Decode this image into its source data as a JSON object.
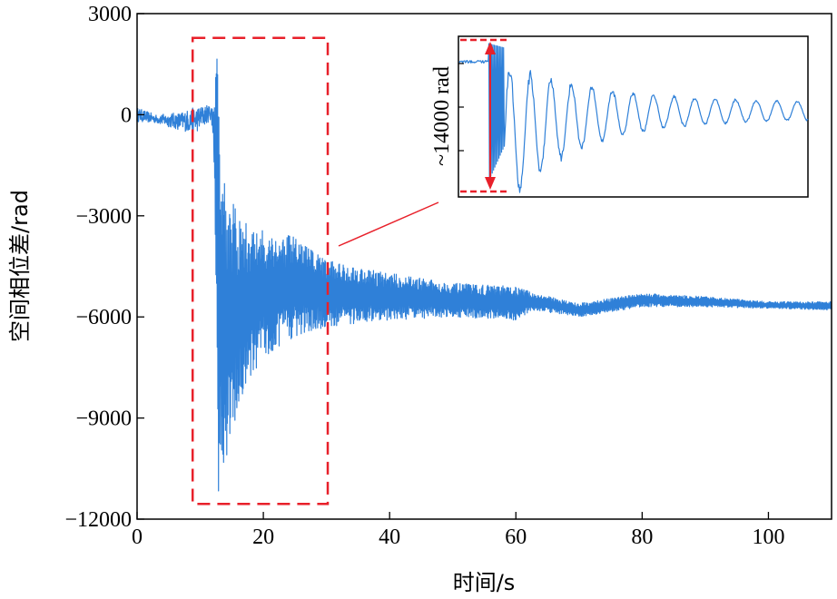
{
  "chart_data": {
    "type": "line",
    "xlabel": "时间/s",
    "ylabel": "空间相位差/rad",
    "xlim": [
      0,
      110
    ],
    "ylim": [
      -12000,
      3000
    ],
    "xticks": [
      0,
      20,
      40,
      60,
      80,
      100
    ],
    "yticks": [
      3000,
      0,
      -3000,
      -6000,
      -9000,
      -12000
    ],
    "yticklabels": [
      "3000",
      "0",
      "−3000",
      "−6000",
      "−9000",
      "−12000"
    ],
    "line_color": "#2f80d8",
    "highlight_color": "#e8202a",
    "highlight_region": {
      "x": [
        8.8,
        30.2
      ],
      "y": [
        -11550,
        2280
      ]
    },
    "inset_annotation": "~14000 rad",
    "envelope": [
      {
        "x": 0,
        "lo": -300,
        "hi": 300
      },
      {
        "x": 3,
        "lo": -300,
        "hi": 50
      },
      {
        "x": 7,
        "lo": -600,
        "hi": 200
      },
      {
        "x": 9.3,
        "lo": -700,
        "hi": 400
      },
      {
        "x": 11.7,
        "lo": -250,
        "hi": 400
      },
      {
        "x": 12.2,
        "lo": -1500,
        "hi": 1000
      },
      {
        "x": 12.8,
        "lo": -11400,
        "hi": 2100
      },
      {
        "x": 14,
        "lo": -10700,
        "hi": -2000
      },
      {
        "x": 16,
        "lo": -8700,
        "hi": -3000
      },
      {
        "x": 18,
        "lo": -7800,
        "hi": -3300
      },
      {
        "x": 20,
        "lo": -7200,
        "hi": -3400
      },
      {
        "x": 25,
        "lo": -6600,
        "hi": -3600
      },
      {
        "x": 30,
        "lo": -6300,
        "hi": -4300
      },
      {
        "x": 40,
        "lo": -6100,
        "hi": -4700
      },
      {
        "x": 50,
        "lo": -6000,
        "hi": -5000
      },
      {
        "x": 60,
        "lo": -6100,
        "hi": -5100
      },
      {
        "x": 63,
        "lo": -5800,
        "hi": -5300
      },
      {
        "x": 70,
        "lo": -6000,
        "hi": -5600
      },
      {
        "x": 80,
        "lo": -5700,
        "hi": -5300
      },
      {
        "x": 90,
        "lo": -5700,
        "hi": -5400
      },
      {
        "x": 100,
        "lo": -5750,
        "hi": -5550
      },
      {
        "x": 110,
        "lo": -5800,
        "hi": -5550
      }
    ]
  }
}
